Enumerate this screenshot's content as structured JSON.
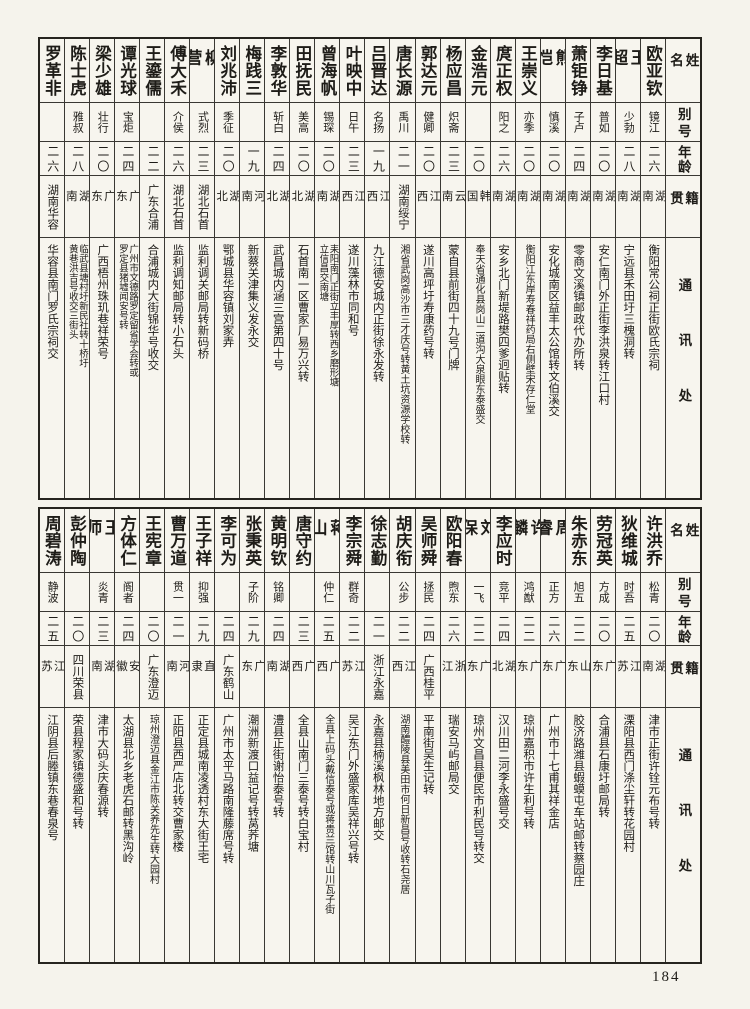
{
  "page": {
    "number": "184"
  },
  "header_labels": {
    "name": "姓名",
    "alias": "别号",
    "age": "年龄",
    "native": "籍贯",
    "address": "通讯处"
  },
  "tables": [
    {
      "name": "top-table",
      "people": [
        {
          "name": "欧亚钦",
          "alias": "镜江",
          "age": "二六",
          "native": "湖南",
          "address": "衡阳常公祠正街欧氏宗祠"
        },
        {
          "name": "王超",
          "alias": "少勃",
          "age": "二八",
          "native": "湖南",
          "address": "宁远县禾田圩三槐洞转"
        },
        {
          "name": "李日基",
          "alias": "普如",
          "age": "二〇",
          "native": "湖南",
          "address": "安仁南门外正街李洪泉转江口村"
        },
        {
          "name": "萧钜铮",
          "alias": "子卢",
          "age": "二四",
          "native": "湖南",
          "address": "零商文溪镇邮政代办所转"
        },
        {
          "name": "熊恺",
          "alias": "慎溪",
          "age": "二〇",
          "native": "湖南",
          "address": "安化城南区益丰太公馆转文伯溪交"
        },
        {
          "name": "王崇义",
          "alias": "亦季",
          "age": "二〇",
          "native": "湖南",
          "address": "衡阳江东岸寿春祥药局右侧壁宋存仁堂"
        },
        {
          "name": "庹正权",
          "alias": "阳之",
          "age": "二六",
          "native": "湖南",
          "address": "安乡北门新堤路樊四爹迥贴转"
        },
        {
          "name": "金浩元",
          "alias": "",
          "age": "二〇",
          "native": "韩国",
          "address": "奉天省通化县岗山二道沟大泉眼东泰盛交"
        },
        {
          "name": "杨应昌",
          "alias": "炽斋",
          "age": "二三",
          "native": "云南",
          "address": "蒙自县前街四十九号门牌"
        },
        {
          "name": "郭达元",
          "alias": "健卿",
          "age": "二〇",
          "native": "江西",
          "address": "遂川高坪圩寿康药号转"
        },
        {
          "name": "唐长源",
          "alias": "禹川",
          "age": "二一",
          "native": "湖南绥宁",
          "address": "湘省武岗高沙市三才庆号转黄土坑资源学校转"
        },
        {
          "name": "吕晋达",
          "alias": "名扬",
          "age": "一九",
          "native": "江西",
          "address": "九江德安城内正街徐永发转"
        },
        {
          "name": "叶映中",
          "alias": "日午",
          "age": "二三",
          "native": "江西",
          "address": "遂川藻林市同和号"
        },
        {
          "name": "曾海帆",
          "alias": "锡琛",
          "age": "二〇",
          "native": "湖南",
          "address": "耒阳南门正街立丰厚转西乡磨形塘\n立信昌交南塘"
        },
        {
          "name": "田抚民",
          "alias": "美高",
          "age": "二〇",
          "native": "湖北",
          "address": "石首南一区曹家厂易万兴转"
        },
        {
          "name": "李敦华",
          "alias": "斩白",
          "age": "二四",
          "native": "湖北",
          "address": "武昌城内涵三宫第四十号"
        },
        {
          "name": "梅践三",
          "alias": "",
          "age": "一九",
          "native": "河南",
          "address": "新蔡关津集义发永交"
        },
        {
          "name": "刘兆沛",
          "alias": "季征",
          "age": "二〇",
          "native": "湖北",
          "address": "鄂城县华容镇刘家弄"
        },
        {
          "name": "柳营",
          "alias": "式烈",
          "age": "二三",
          "native": "湖北石首",
          "address": "监利调关邮局转新码桥"
        },
        {
          "name": "傅大禾",
          "alias": "介侯",
          "age": "二六",
          "native": "湖北石首",
          "address": "监利调知邮局转小石头"
        },
        {
          "name": "王鎏儒",
          "alias": "",
          "age": "二二",
          "native": "广东合浦",
          "address": "合浦城内大街锦华号收交"
        },
        {
          "name": "谭光球",
          "alias": "宝炬",
          "age": "二四",
          "native": "广东",
          "address": "广州市文德路罗定留省学会转或\n罗定县猪墟闻安号转"
        },
        {
          "name": "梁少雄",
          "alias": "壮行",
          "age": "二〇",
          "native": "广东",
          "address": "广西梧州珠玑巷祥荣号"
        },
        {
          "name": "陈士虎",
          "alias": "雅叔",
          "age": "二八",
          "native": "湖南",
          "address": "临武县塘村圩新民社转十桥圩\n黄巷洪吉号收交三街头"
        },
        {
          "name": "罗革非",
          "alias": "",
          "age": "二六",
          "native": "湖南华容",
          "address": "华容县南门罗氏宗祠交"
        }
      ]
    },
    {
      "name": "bottom-table",
      "people": [
        {
          "name": "许洪乔",
          "alias": "松青",
          "age": "二〇",
          "native": "湖南",
          "address": "津市正街许铨元布号转"
        },
        {
          "name": "狄维城",
          "alias": "时吾",
          "age": "二五",
          "native": "江苏",
          "address": "溧阳县西门涤尘轩转花园村"
        },
        {
          "name": "劳冠英",
          "alias": "方成",
          "age": "二〇",
          "native": "广东",
          "address": "合浦县石康圩邮局转"
        },
        {
          "name": "朱赤东",
          "alias": "旭五",
          "age": "二二",
          "native": "山东",
          "address": "胶济路潍县蝦蟆屯车站邮转蔡园庄"
        },
        {
          "name": "周睿",
          "alias": "正方",
          "age": "二六",
          "native": "广东",
          "address": "广州市十七甫其祥金店"
        },
        {
          "name": "许麟",
          "alias": "鸿猷",
          "age": "二二",
          "native": "广东",
          "address": "琼州嘉积市许生利号转"
        },
        {
          "name": "李应时",
          "alias": "竞平",
          "age": "二四",
          "native": "湖北",
          "address": "汉川田二河李永盛号交"
        },
        {
          "name": "刘保",
          "alias": "一飞",
          "age": "二二",
          "native": "广东",
          "address": "琼州文昌县便民市利民号转交"
        },
        {
          "name": "欧阳春",
          "alias": "煦东",
          "age": "二六",
          "native": "浙江",
          "address": "瑞安马屿邮局交"
        },
        {
          "name": "吴师舜",
          "alias": "拯民",
          "age": "二四",
          "native": "广西桂平",
          "address": "平南街吴生记转"
        },
        {
          "name": "胡庆衔",
          "alias": "公步",
          "age": "二二",
          "native": "江西",
          "address": "湖南醴陵县美田市何日新昌号收转石尧居"
        },
        {
          "name": "徐志勤",
          "alias": "",
          "age": "二一",
          "native": "浙江永嘉",
          "address": "永嘉县楠溪枫林地方邮交"
        },
        {
          "name": "李宗舜",
          "alias": "群奇",
          "age": "二二",
          "native": "江苏",
          "address": "吴江东门外盛家库吴祥兴号转"
        },
        {
          "name": "蒋山",
          "alias": "仲仁",
          "age": "二五",
          "native": "广西",
          "address": "全县上码头戴信泰号或蒋贵兰馆转山川瓦子街"
        },
        {
          "name": "唐守约",
          "alias": "",
          "age": "二三",
          "native": "广西",
          "address": "全县山南门三泰号转白宝村"
        },
        {
          "name": "黄明钦",
          "alias": "铭卿",
          "age": "二四",
          "native": "湖南",
          "address": "澧县正街谢怡泰号转"
        },
        {
          "name": "张秉英",
          "alias": "子阶",
          "age": "二九",
          "native": "广东",
          "address": "潮洲新渡口益记号转莴荞塘"
        },
        {
          "name": "李可为",
          "alias": "",
          "age": "二四",
          "native": "广东鹤山",
          "address": "广州市太平马路南隆藤席号转"
        },
        {
          "name": "王子祥",
          "alias": "抑强",
          "age": "二九",
          "native": "直隶",
          "address": "正定县城南凌透村东大街王宅"
        },
        {
          "name": "曹万道",
          "alias": "贯一",
          "age": "二一",
          "native": "河南",
          "address": "正阳县西严店北转交曹家楼"
        },
        {
          "name": "王宪章",
          "alias": "",
          "age": "二〇",
          "native": "广东澄迈",
          "address": "琼州澄迈县金江市陈关养先生转大园村"
        },
        {
          "name": "方体仁",
          "alias": "阍者",
          "age": "二四",
          "native": "安徽",
          "address": "太湖县北乡老虎石邮转黑沟岭"
        },
        {
          "name": "王师",
          "alias": "炎青",
          "age": "二三",
          "native": "湖南",
          "address": "津市大码头庆春源转"
        },
        {
          "name": "彭仲陶",
          "alias": "",
          "age": "二〇",
          "native": "四川荣县",
          "address": "荣县程家镇德盛和号转"
        },
        {
          "name": "周碧涛",
          "alias": "静波",
          "age": "二五",
          "native": "江苏",
          "address": "江阴县后塍镇东巷春泉号"
        }
      ]
    }
  ]
}
